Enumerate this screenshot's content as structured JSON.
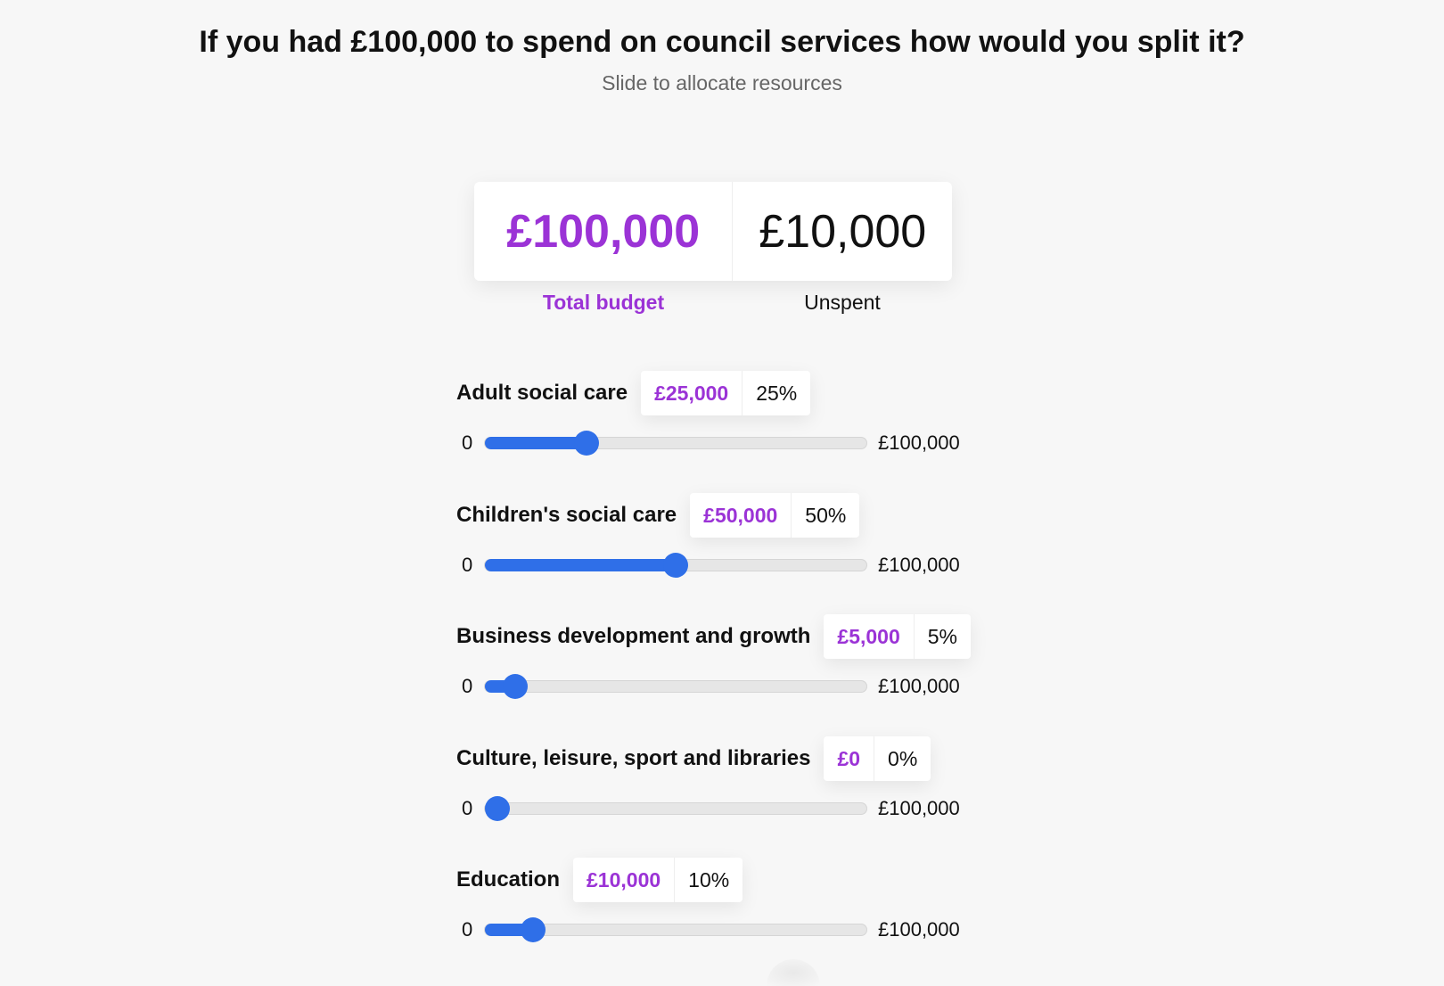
{
  "header": {
    "title": "If you had £100,000 to spend on council services how would you split it?",
    "subtitle": "Slide to allocate resources"
  },
  "budget": {
    "total_value": "£100,000",
    "total_label": "Total budget",
    "unspent_value": "£10,000",
    "unspent_label": "Unspent"
  },
  "slider": {
    "min_label": "0",
    "max_label": "£100,000"
  },
  "services": [
    {
      "name": "Adult social care",
      "amount": "£25,000",
      "percent": "25%",
      "fraction": 0.25
    },
    {
      "name": "Children's social care",
      "amount": "£50,000",
      "percent": "50%",
      "fraction": 0.5
    },
    {
      "name": "Business development and growth",
      "amount": "£5,000",
      "percent": "5%",
      "fraction": 0.05
    },
    {
      "name": "Culture, leisure, sport and libraries",
      "amount": "£0",
      "percent": "0%",
      "fraction": 0
    },
    {
      "name": "Education",
      "amount": "£10,000",
      "percent": "10%",
      "fraction": 0.1
    }
  ],
  "colors": {
    "accent": "#9b33d6",
    "slider": "#2f6fe8",
    "track": "#e6e6e6",
    "background": "#f7f7f7"
  }
}
